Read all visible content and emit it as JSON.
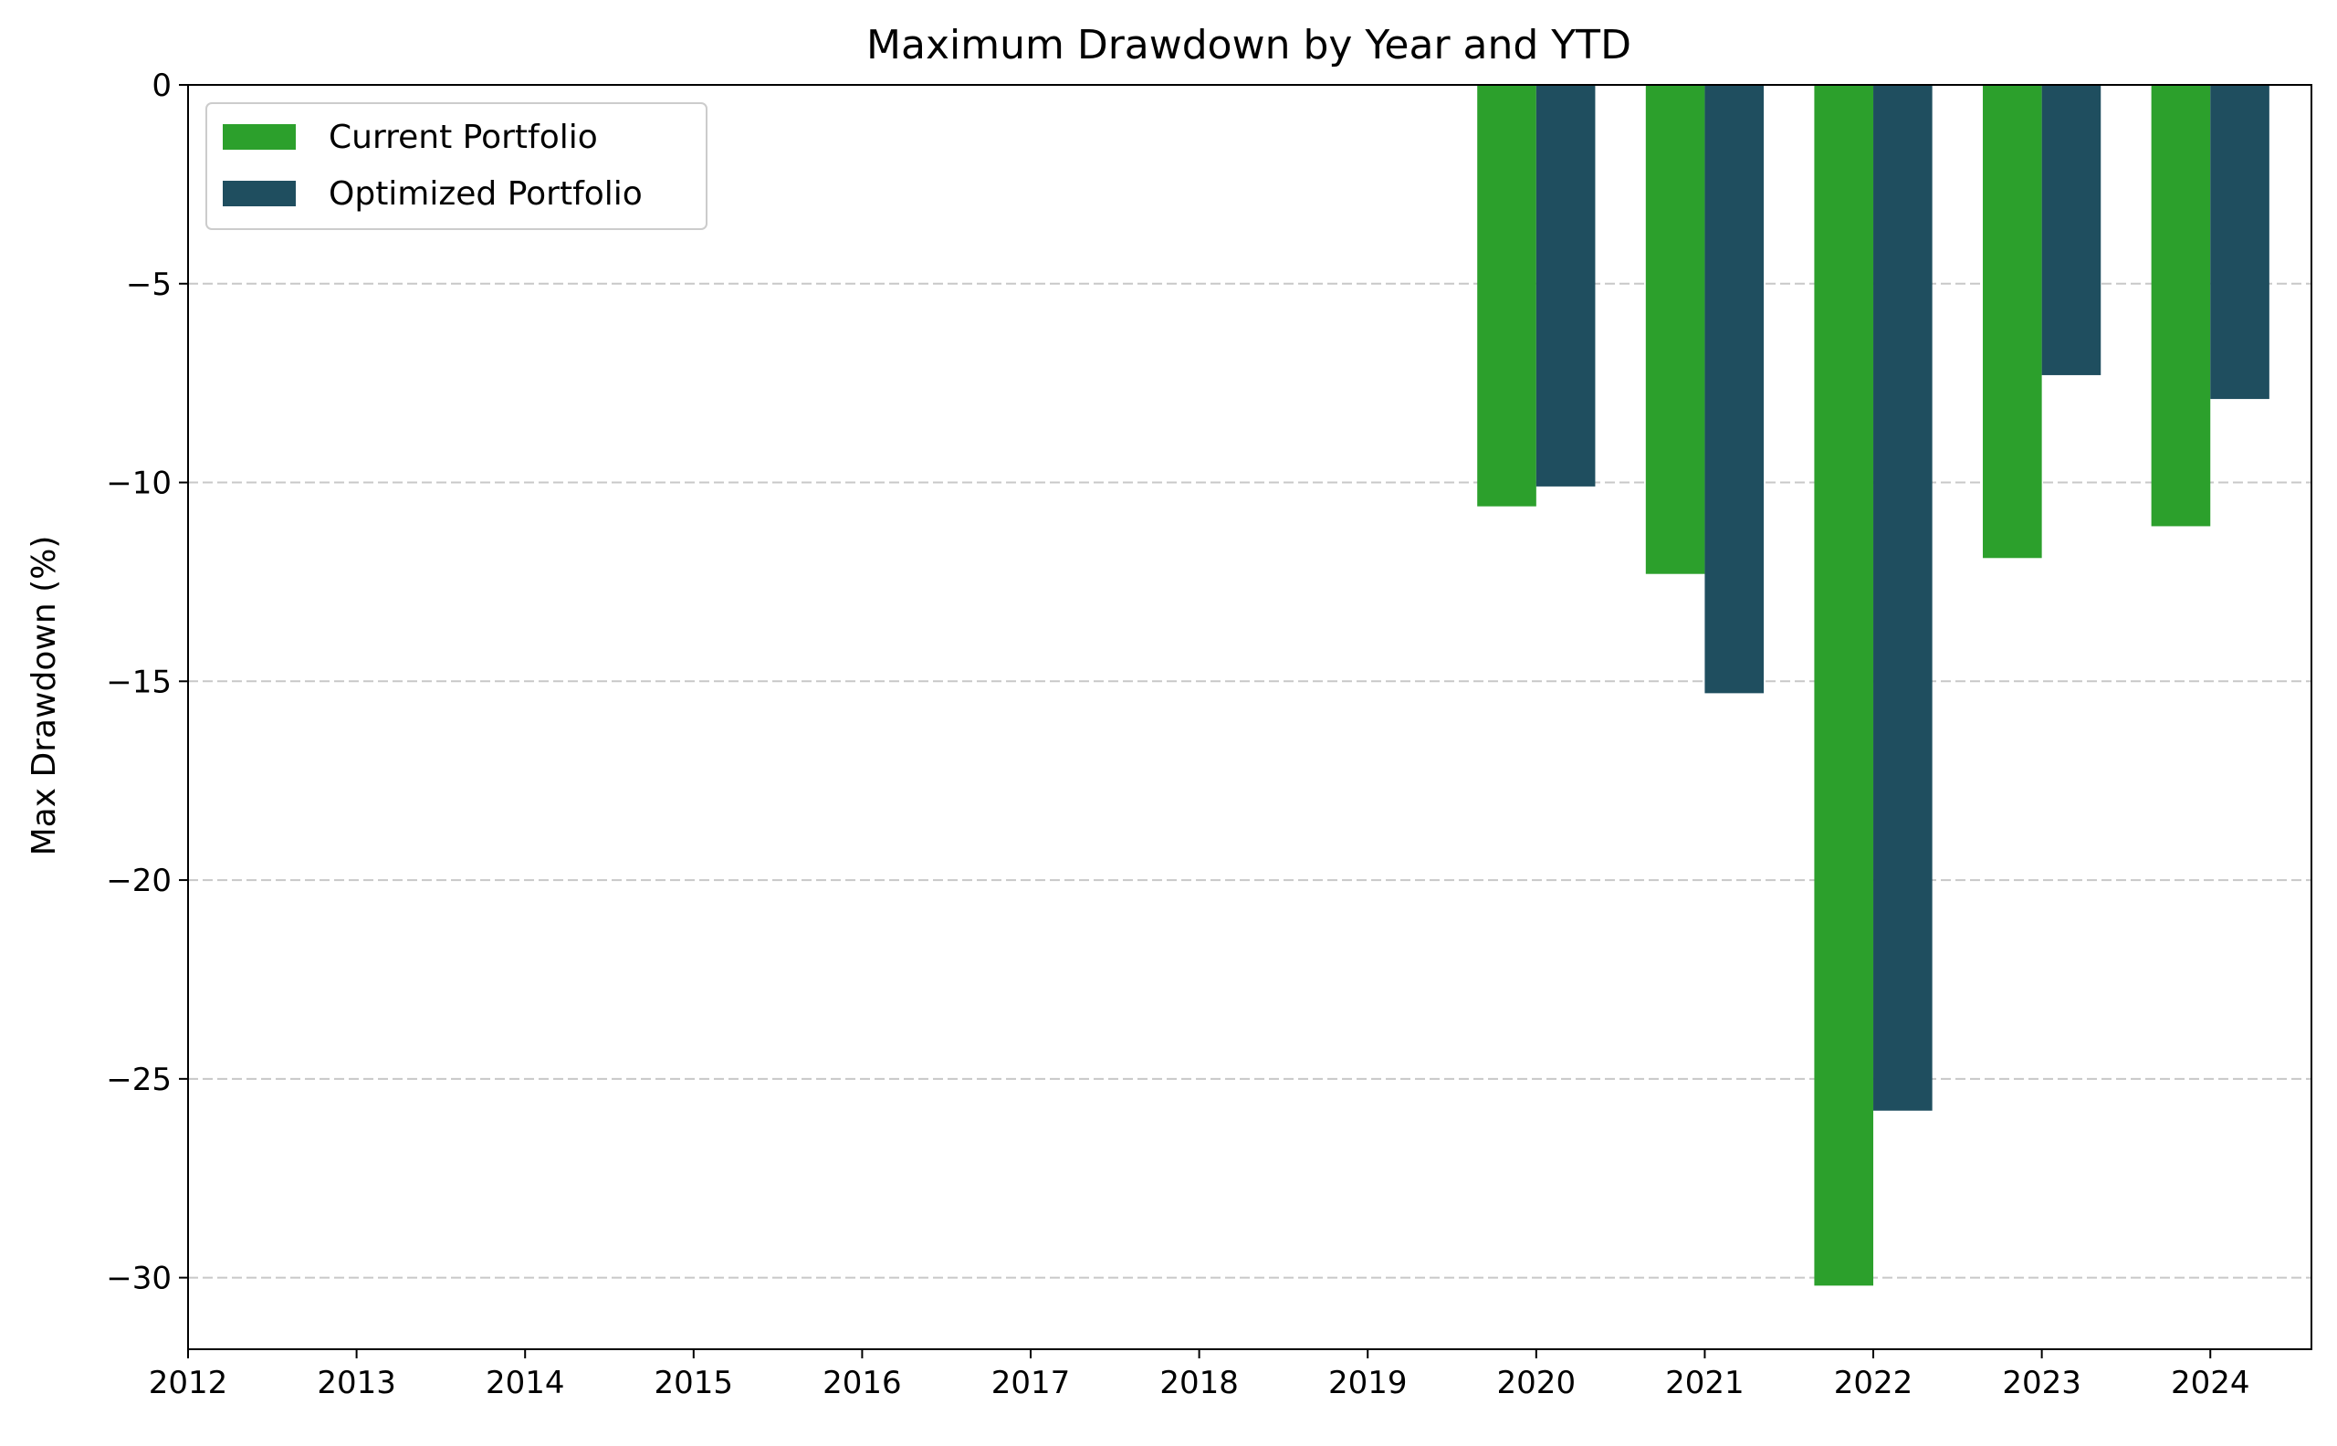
{
  "chart_data": {
    "type": "bar",
    "title": "Maximum Drawdown by Year and YTD",
    "xlabel": "",
    "ylabel": "Max Drawdown (%)",
    "x_ticks": [
      "2012",
      "2013",
      "2014",
      "2015",
      "2016",
      "2017",
      "2018",
      "2019",
      "2020",
      "2021",
      "2022",
      "2023",
      "2024"
    ],
    "y_ticks": [
      "0",
      "−5",
      "−10",
      "−15",
      "−20",
      "−25",
      "−30"
    ],
    "y_tick_values": [
      0,
      -5,
      -10,
      -15,
      -20,
      -25,
      -30
    ],
    "categories": [
      "2020",
      "2021",
      "2022",
      "2023",
      "2024"
    ],
    "category_values": [
      2020,
      2021,
      2022,
      2023,
      2024
    ],
    "series": [
      {
        "name": "Current Portfolio",
        "color": "#2ca02c",
        "values": [
          -10.6,
          -12.3,
          -30.2,
          -11.9,
          -11.1
        ]
      },
      {
        "name": "Optimized Portfolio",
        "color": "#1f4e5f",
        "values": [
          -10.1,
          -15.3,
          -25.8,
          -7.3,
          -7.9
        ]
      }
    ],
    "xlim": [
      2012,
      2024.6
    ],
    "ylim": [
      -31.8,
      0
    ],
    "grid": "horizontal dashed",
    "legend_position": "top-left",
    "grid_color": "#c8c8c8"
  }
}
